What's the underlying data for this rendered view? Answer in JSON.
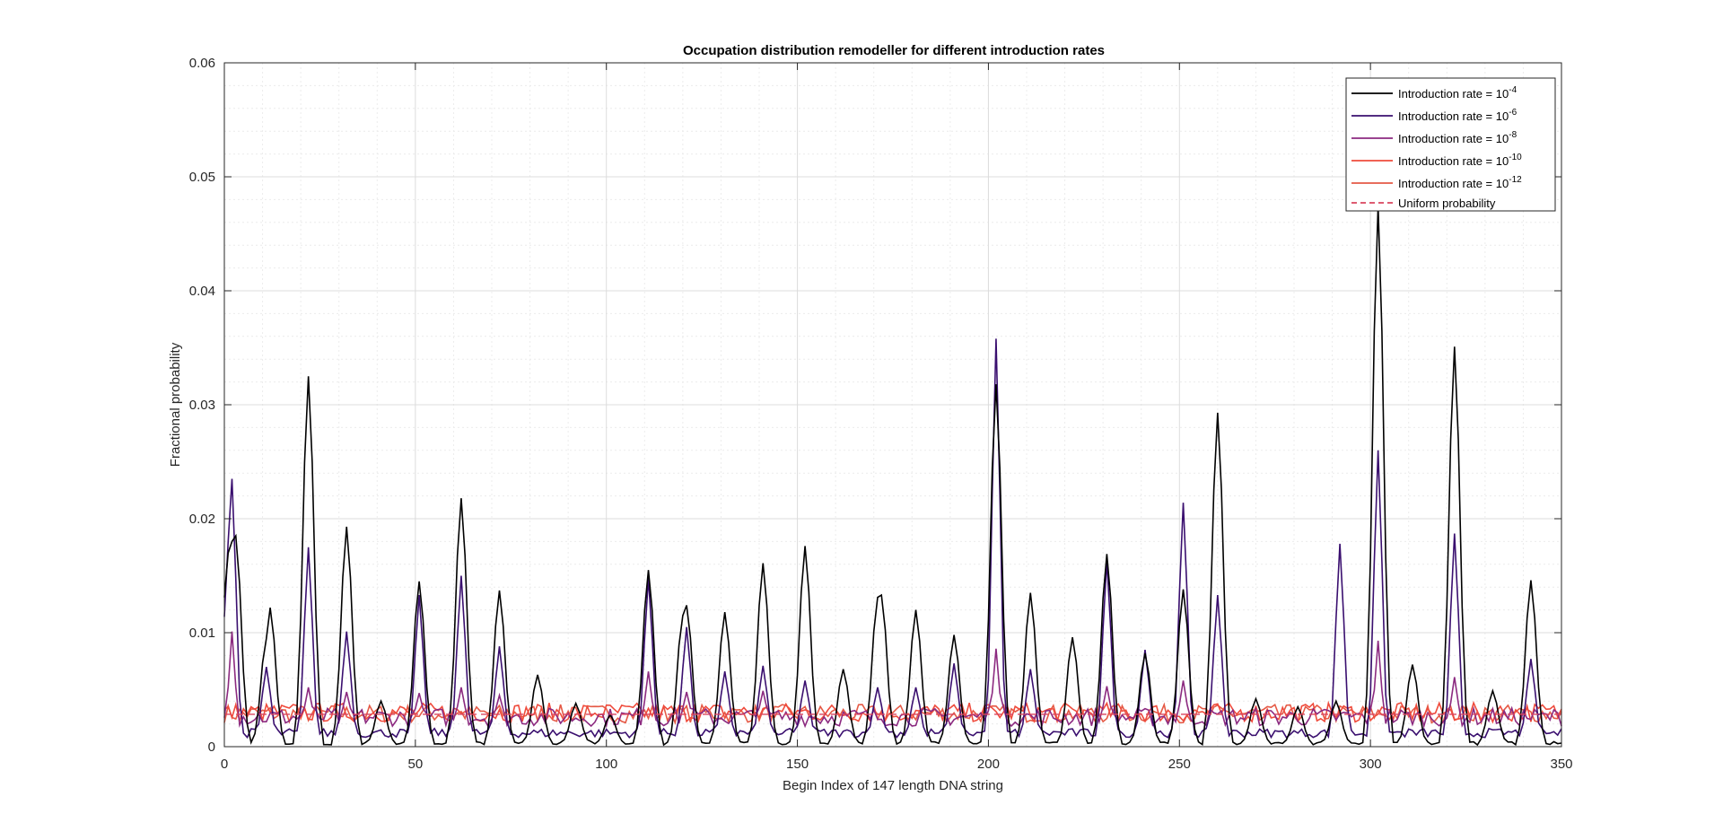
{
  "chart_data": {
    "type": "line",
    "title": "Occupation distribution remodeller for different introduction rates",
    "xlabel": "Begin Index of 147 length DNA string",
    "ylabel": "Fractional probability",
    "xlim": [
      0,
      350
    ],
    "ylim": [
      0,
      0.06
    ],
    "xticks": [
      "0",
      "50",
      "100",
      "150",
      "200",
      "250",
      "300",
      "350"
    ],
    "yticks": [
      "0",
      "0.01",
      "0.02",
      "0.03",
      "0.04",
      "0.05",
      "0.06"
    ],
    "grid": true,
    "minor_grid": true,
    "legend_position": "top-right",
    "uniform_probability": 0.00284,
    "series": [
      {
        "name": "Introduction rate = 10^-4",
        "name_base": "Introduction rate = 10",
        "name_exp": "-4",
        "color": "#000000",
        "style": "solid",
        "peaks": [
          [
            1,
            0.017
          ],
          [
            2,
            0.018
          ],
          [
            3,
            0.0185
          ],
          [
            11,
            0.0095
          ],
          [
            12,
            0.0122
          ],
          [
            22,
            0.0325
          ],
          [
            32,
            0.0193
          ],
          [
            41,
            0.004
          ],
          [
            51,
            0.0145
          ],
          [
            62,
            0.0218
          ],
          [
            72,
            0.0137
          ],
          [
            82,
            0.0063
          ],
          [
            92,
            0.0038
          ],
          [
            101,
            0.0028
          ],
          [
            111,
            0.0155
          ],
          [
            120,
            0.0115
          ],
          [
            121,
            0.0124
          ],
          [
            131,
            0.0118
          ],
          [
            141,
            0.0161
          ],
          [
            152,
            0.0176
          ],
          [
            162,
            0.0068
          ],
          [
            171,
            0.0131
          ],
          [
            172,
            0.0133
          ],
          [
            181,
            0.012
          ],
          [
            191,
            0.0098
          ],
          [
            202,
            0.0318
          ],
          [
            211,
            0.0135
          ],
          [
            222,
            0.0096
          ],
          [
            231,
            0.0169
          ],
          [
            241,
            0.0082
          ],
          [
            251,
            0.0138
          ],
          [
            260,
            0.0293
          ],
          [
            270,
            0.0042
          ],
          [
            281,
            0.0035
          ],
          [
            291,
            0.004
          ],
          [
            302,
            0.0475
          ],
          [
            311,
            0.0072
          ],
          [
            322,
            0.0351
          ],
          [
            332,
            0.0049
          ],
          [
            342,
            0.0146
          ]
        ]
      },
      {
        "name": "Introduction rate = 10^-6",
        "name_base": "Introduction rate = 10",
        "name_exp": "-6",
        "color": "#3a0f6f",
        "style": "solid",
        "peaks": [
          [
            1,
            0.018
          ],
          [
            2,
            0.0235
          ],
          [
            11,
            0.007
          ],
          [
            22,
            0.0175
          ],
          [
            32,
            0.0101
          ],
          [
            51,
            0.0133
          ],
          [
            62,
            0.015
          ],
          [
            72,
            0.0088
          ],
          [
            111,
            0.0148
          ],
          [
            121,
            0.0105
          ],
          [
            131,
            0.0066
          ],
          [
            141,
            0.0071
          ],
          [
            152,
            0.0058
          ],
          [
            171,
            0.0052
          ],
          [
            181,
            0.0052
          ],
          [
            191,
            0.0073
          ],
          [
            202,
            0.0358
          ],
          [
            211,
            0.0068
          ],
          [
            231,
            0.0163
          ],
          [
            241,
            0.0085
          ],
          [
            251,
            0.0214
          ],
          [
            260,
            0.0133
          ],
          [
            292,
            0.0178
          ],
          [
            302,
            0.026
          ],
          [
            322,
            0.0187
          ],
          [
            342,
            0.0077
          ]
        ]
      },
      {
        "name": "Introduction rate = 10^-8",
        "name_base": "Introduction rate = 10",
        "name_exp": "-8",
        "color": "#8c2a80",
        "style": "solid",
        "peaks": [
          [
            2,
            0.0101
          ],
          [
            22,
            0.0052
          ],
          [
            32,
            0.0048
          ],
          [
            51,
            0.0047
          ],
          [
            62,
            0.0052
          ],
          [
            72,
            0.0045
          ],
          [
            111,
            0.0066
          ],
          [
            121,
            0.0048
          ],
          [
            141,
            0.0049
          ],
          [
            202,
            0.0086
          ],
          [
            231,
            0.0053
          ],
          [
            251,
            0.0058
          ],
          [
            302,
            0.0093
          ],
          [
            322,
            0.0061
          ]
        ]
      },
      {
        "name": "Introduction rate = 10^-10",
        "name_base": "Introduction rate = 10",
        "name_exp": "-10",
        "color": "#ef4b3c",
        "style": "solid"
      },
      {
        "name": "Introduction rate = 10^-12",
        "name_base": "Introduction rate = 10",
        "name_exp": "-12",
        "color": "#e55a46",
        "style": "solid"
      },
      {
        "name": "Uniform probability",
        "color": "#d9455f",
        "style": "dashed"
      }
    ]
  }
}
